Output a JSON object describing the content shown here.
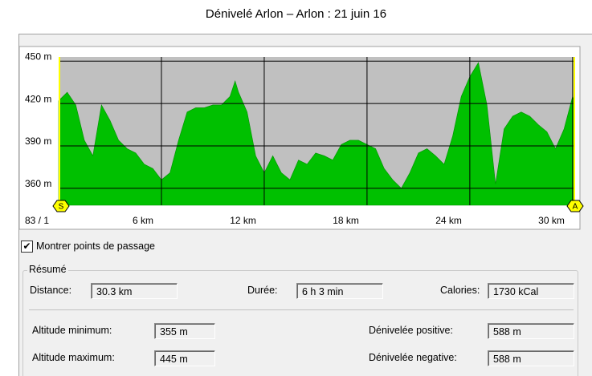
{
  "title": "Dénivelé Arlon – Arlon : 21 juin 16",
  "chart_data": {
    "type": "area",
    "x": [
      0,
      0.5,
      1,
      1.5,
      2,
      2.5,
      3,
      3.5,
      4,
      4.5,
      5,
      5.5,
      6,
      6.5,
      7,
      7.5,
      8,
      8.5,
      9,
      9.5,
      10,
      10.3,
      10.5,
      11,
      11.5,
      12,
      12.5,
      13,
      13.5,
      14,
      14.5,
      15,
      15.5,
      16,
      16.5,
      17,
      17.5,
      18,
      18.5,
      19,
      19.5,
      20,
      20.5,
      21,
      21.5,
      22,
      22.5,
      23,
      23.5,
      24,
      24.5,
      25,
      25.5,
      26,
      26.5,
      27,
      27.5,
      28,
      28.5,
      29,
      29.5,
      30,
      30.1
    ],
    "values": [
      422,
      428,
      419,
      394,
      383,
      419,
      408,
      394,
      388,
      385,
      377,
      374,
      366,
      371,
      394,
      414,
      417,
      417,
      419,
      419,
      425,
      436,
      428,
      414,
      383,
      371,
      383,
      371,
      366,
      380,
      377,
      385,
      383,
      380,
      391,
      394,
      394,
      391,
      388,
      374,
      366,
      360,
      371,
      385,
      388,
      383,
      377,
      397,
      425,
      439,
      449,
      419,
      363,
      402,
      411,
      414,
      411,
      405,
      400,
      388,
      402,
      425,
      422
    ],
    "color": "#00c000",
    "background": "#c0c0c0",
    "xlim": [
      0,
      30.1
    ],
    "ylim": [
      348,
      453
    ],
    "xticks": [
      {
        "value": 6,
        "label": "6 km"
      },
      {
        "value": 12,
        "label": "12 km"
      },
      {
        "value": 18,
        "label": "18 km"
      },
      {
        "value": 24,
        "label": "24 km"
      },
      {
        "value": 30,
        "label": "30 km"
      }
    ],
    "yticks": [
      {
        "value": 360,
        "label": "360 m"
      },
      {
        "value": 390,
        "label": "390 m"
      },
      {
        "value": 420,
        "label": "420 m"
      },
      {
        "value": 450,
        "label": "450 m"
      }
    ],
    "origin_label": "83 / 1",
    "start_marker": "S",
    "end_marker": "A",
    "grid": true
  },
  "checkbox": {
    "label": "Montrer points de passage",
    "checked": true
  },
  "summary": {
    "title": "Résumé",
    "fields": [
      {
        "label": "Distance:",
        "value": "30.3 km"
      },
      {
        "label": "Durée:",
        "value": "6 h 3 min"
      },
      {
        "label": "Calories:",
        "value": "1730 kCal"
      },
      {
        "label": "Altitude minimum:",
        "value": "355 m"
      },
      {
        "label": "Dénivelée positive:",
        "value": "588 m"
      },
      {
        "label": "Altitude maximum:",
        "value": "445 m"
      },
      {
        "label": "Dénivelée negative:",
        "value": "588 m"
      }
    ]
  }
}
